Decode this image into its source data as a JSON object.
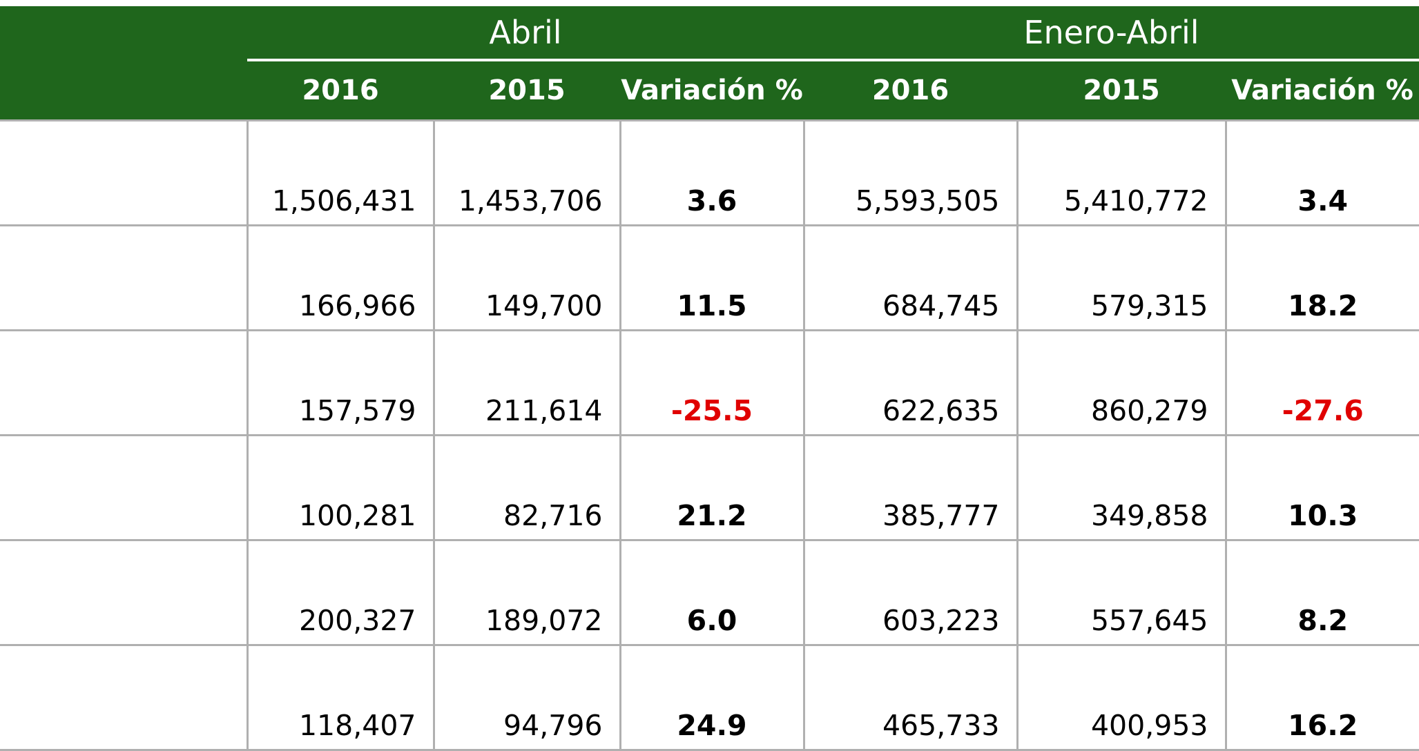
{
  "table": {
    "groups": [
      "Abril",
      "Enero-Abril"
    ],
    "columns": [
      "2016",
      "2015",
      "Variación %",
      "2016",
      "2015",
      "Variación %"
    ],
    "rows": [
      [
        "1,506,431",
        "1,453,706",
        "3.6",
        "5,593,505",
        "5,410,772",
        "3.4"
      ],
      [
        "166,966",
        "149,700",
        "11.5",
        "684,745",
        "579,315",
        "18.2"
      ],
      [
        "157,579",
        "211,614",
        "-25.5",
        "622,635",
        "860,279",
        "-27.6"
      ],
      [
        "100,281",
        "82,716",
        "21.2",
        "385,777",
        "349,858",
        "10.3"
      ],
      [
        "200,327",
        "189,072",
        "6.0",
        "603,223",
        "557,645",
        "8.2"
      ],
      [
        "118,407",
        "94,796",
        "24.9",
        "465,733",
        "400,953",
        "16.2"
      ]
    ]
  }
}
